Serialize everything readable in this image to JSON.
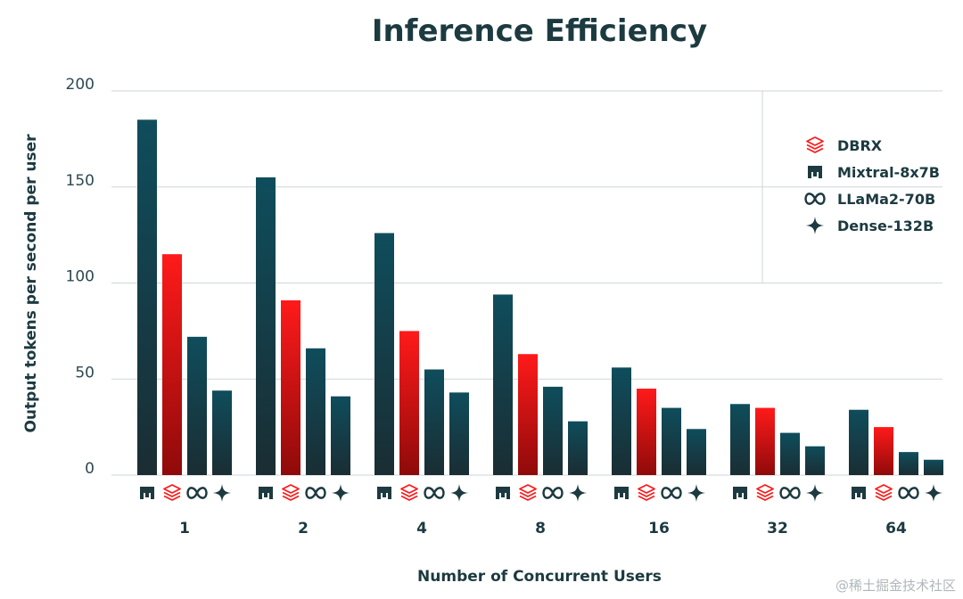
{
  "chart_data": {
    "type": "bar",
    "title": "Inference Efficiency",
    "xlabel": "Number of Concurrent Users",
    "ylabel": "Output tokens per second per user",
    "ylim": [
      0,
      200
    ],
    "yticks": [
      0,
      50,
      100,
      150,
      200
    ],
    "grid": true,
    "legend_position": "top-right",
    "categories": [
      "1",
      "2",
      "4",
      "8",
      "16",
      "32",
      "64"
    ],
    "bar_order": [
      "Mixtral-8x7B",
      "DBRX",
      "LLaMa2-70B",
      "Dense-132B"
    ],
    "series": [
      {
        "name": "Mixtral-8x7B",
        "icon": "mixtral-icon",
        "color": "#0f4d5c",
        "values": [
          185,
          155,
          126,
          94,
          56,
          37,
          34
        ]
      },
      {
        "name": "DBRX",
        "icon": "dbrx-icon",
        "color": "#ff1a1a",
        "values": [
          115,
          91,
          75,
          63,
          45,
          35,
          25
        ]
      },
      {
        "name": "LLaMa2-70B",
        "icon": "meta-icon",
        "color": "#0f4d5c",
        "values": [
          72,
          66,
          55,
          46,
          35,
          22,
          12
        ]
      },
      {
        "name": "Dense-132B",
        "icon": "sparkle-icon",
        "color": "#0f4d5c",
        "values": [
          44,
          41,
          43,
          28,
          24,
          15,
          8
        ]
      }
    ],
    "legend_order": [
      "DBRX",
      "Mixtral-8x7B",
      "LLaMa2-70B",
      "Dense-132B"
    ]
  },
  "watermark": "@稀土掘金技术社区",
  "colors": {
    "dark_top": "#0f4d5c",
    "dark_bottom": "#1a2d33",
    "red_top": "#ff1a1a",
    "red_bottom": "#8f0a0a",
    "grid": "#cfd6d9",
    "ink": "#1c3a40"
  }
}
